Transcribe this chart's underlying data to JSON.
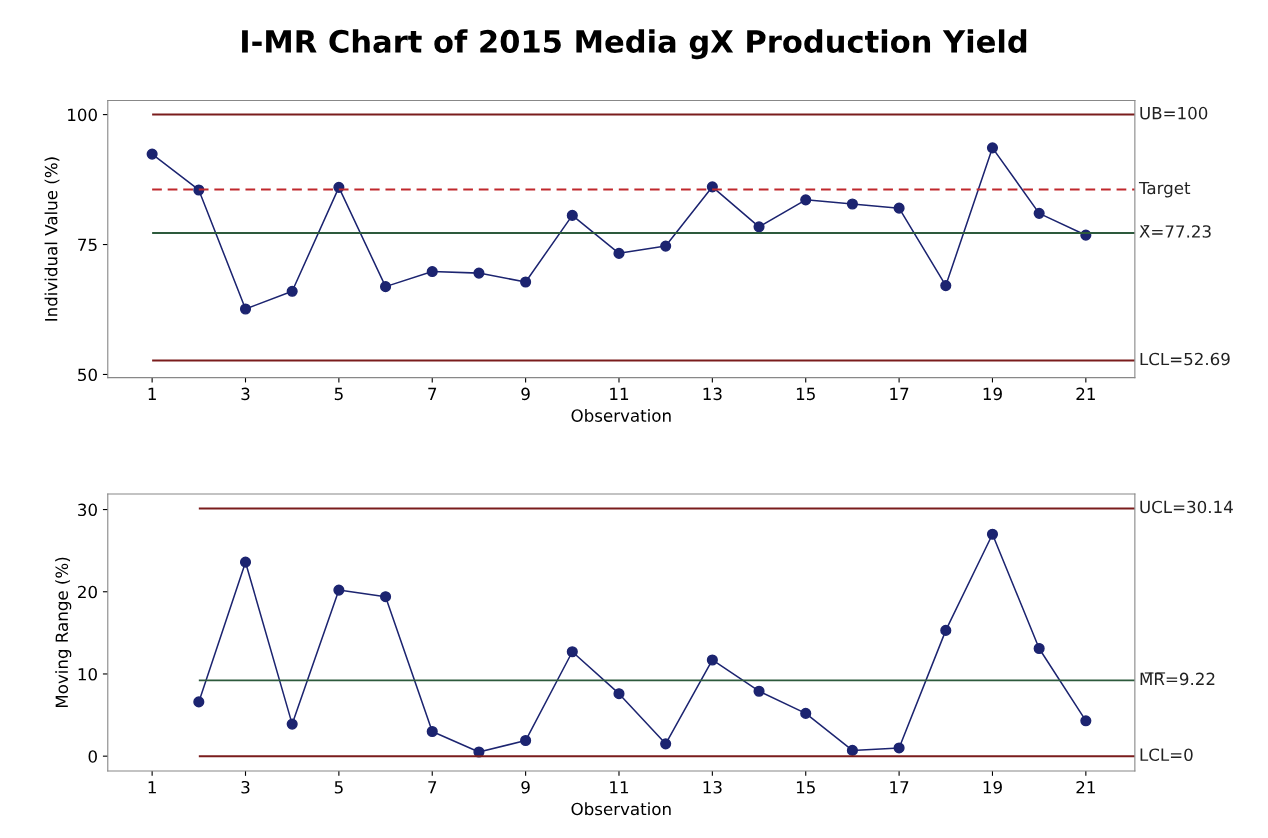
{
  "chart_data": [
    {
      "type": "line",
      "title": "I-MR Chart of 2015 Media gX Production Yield",
      "xlabel": "Observation",
      "ylabel": "Individual Value (%)",
      "x": [
        1,
        2,
        3,
        4,
        5,
        6,
        7,
        8,
        9,
        10,
        11,
        12,
        13,
        14,
        15,
        16,
        17,
        18,
        19,
        20,
        21
      ],
      "series": [
        {
          "color": "#1c2470",
          "values": [
            92.4,
            85.5,
            62.6,
            66.0,
            86.0,
            66.9,
            69.8,
            69.5,
            67.8,
            80.6,
            73.3,
            74.7,
            86.1,
            78.4,
            83.6,
            82.8,
            82.0,
            67.1,
            93.6,
            81.0,
            76.8
          ]
        }
      ],
      "xlim": [
        0.05,
        22.05
      ],
      "ylim": [
        49.4,
        102.7
      ],
      "xticks": [
        1,
        3,
        5,
        7,
        9,
        11,
        13,
        15,
        17,
        19,
        21
      ],
      "yticks": [
        50,
        75,
        100
      ],
      "ref_lines": [
        {
          "axis": "y",
          "value": 100,
          "label": "UB=100",
          "color": "#7a1c1c",
          "line_style": "solid"
        },
        {
          "axis": "y",
          "value": 85.6,
          "label": "Target",
          "color": "#c0282d",
          "line_style": "dashed"
        },
        {
          "axis": "y",
          "value": 77.23,
          "label": "X̄=77.23",
          "color": "#2d5a3c",
          "line_style": "solid"
        },
        {
          "axis": "y",
          "value": 52.69,
          "label": "LCL=52.69",
          "color": "#7a1c1c",
          "line_style": "solid"
        }
      ],
      "marker": "circle",
      "line_style": "solid",
      "grid": false
    },
    {
      "type": "line",
      "xlabel": "Observation",
      "ylabel": "Moving Range (%)",
      "x": [
        2,
        3,
        4,
        5,
        6,
        7,
        8,
        9,
        10,
        11,
        12,
        13,
        14,
        15,
        16,
        17,
        18,
        19,
        20,
        21
      ],
      "series": [
        {
          "color": "#1c2470",
          "values": [
            6.6,
            23.6,
            3.9,
            20.2,
            19.4,
            3.0,
            0.5,
            1.9,
            12.7,
            7.6,
            1.5,
            11.7,
            7.9,
            5.2,
            0.7,
            1.0,
            15.3,
            27.0,
            13.1,
            4.3
          ]
        }
      ],
      "xlim": [
        0.05,
        22.05
      ],
      "ylim": [
        -1.8,
        31.9
      ],
      "xticks": [
        1,
        3,
        5,
        7,
        9,
        11,
        13,
        15,
        17,
        19,
        21
      ],
      "yticks": [
        0,
        10,
        20,
        30
      ],
      "ref_lines": [
        {
          "axis": "y",
          "value": 30.14,
          "label": "UCL=30.14",
          "color": "#7a1c1c",
          "line_style": "solid"
        },
        {
          "axis": "y",
          "value": 9.22,
          "label": "M̅R̅=9.22",
          "color": "#2d5a3c",
          "line_style": "solid"
        },
        {
          "axis": "y",
          "value": 0,
          "label": "LCL=0",
          "color": "#7a1c1c",
          "line_style": "solid"
        }
      ],
      "marker": "circle",
      "line_style": "solid",
      "grid": false
    }
  ]
}
